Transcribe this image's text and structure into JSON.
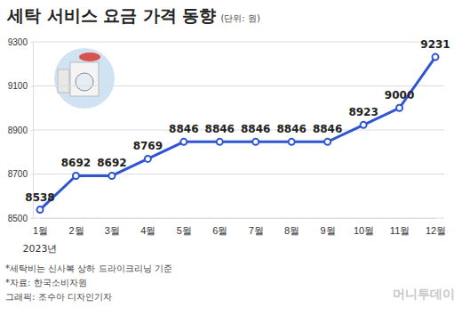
{
  "chart_data": {
    "type": "line",
    "title": "세탁 서비스 요금 가격 동향",
    "subtitle": "(단위: 원)",
    "categories": [
      "1월",
      "2월",
      "3월",
      "4월",
      "5월",
      "6월",
      "7월",
      "8월",
      "9월",
      "10월",
      "11월",
      "12월"
    ],
    "values": [
      8538,
      8692,
      8692,
      8769,
      8846,
      8846,
      8846,
      8846,
      8846,
      8923,
      9000,
      9231
    ],
    "color": "#2f55d4",
    "ylim": [
      8500,
      9300
    ],
    "yticks": [
      8500,
      8700,
      8900,
      9100,
      9300
    ],
    "grid": true,
    "data_labels": true,
    "marker": "circle",
    "annotations": [
      "2023년"
    ],
    "notes": [
      "*세탁비는 신사복 상하 드라이크리닝 기준",
      "*자료: 한국소비자원",
      "그래픽: 조수아 디자인기자"
    ],
    "logo": "머니투데이"
  }
}
